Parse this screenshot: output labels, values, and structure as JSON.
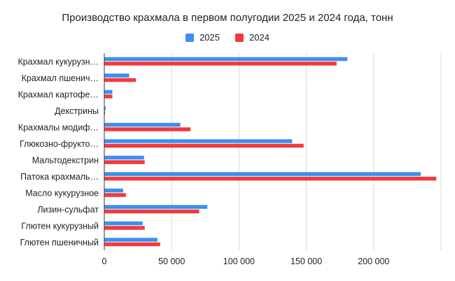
{
  "chart_data": {
    "type": "bar",
    "orientation": "horizontal",
    "title": "Производство крахмала в первом полугодии 2025 и 2024 года, тонн",
    "categories": [
      "Крахмал кукурузн…",
      "Крахмал пшенич…",
      "Крахмал картофе…",
      "Декстрины",
      "Крахмалы модиф…",
      "Глюкозно-фрукто…",
      "Мальтодекстрин",
      "Патока крахмаль…",
      "Масло кукурузное",
      "Лизин-сульфат",
      "Глютен кукурузный",
      "Глютен пшеничный"
    ],
    "series": [
      {
        "name": "2025",
        "color": "#3d8ef0",
        "values": [
          180500,
          18500,
          6000,
          1000,
          56500,
          139500,
          29500,
          235000,
          14000,
          76500,
          28500,
          39500
        ]
      },
      {
        "name": "2024",
        "color": "#f03a3d",
        "values": [
          172500,
          23500,
          6000,
          500,
          64000,
          148000,
          30000,
          246500,
          16000,
          70500,
          30000,
          41500
        ]
      }
    ],
    "xlim": [
      0,
      250000
    ],
    "xticks": [
      0,
      50000,
      100000,
      150000,
      200000
    ],
    "xtick_labels": [
      "0",
      "50 000",
      "100 000",
      "150 000",
      "200 000"
    ],
    "grid": true,
    "legend_position": "top"
  }
}
